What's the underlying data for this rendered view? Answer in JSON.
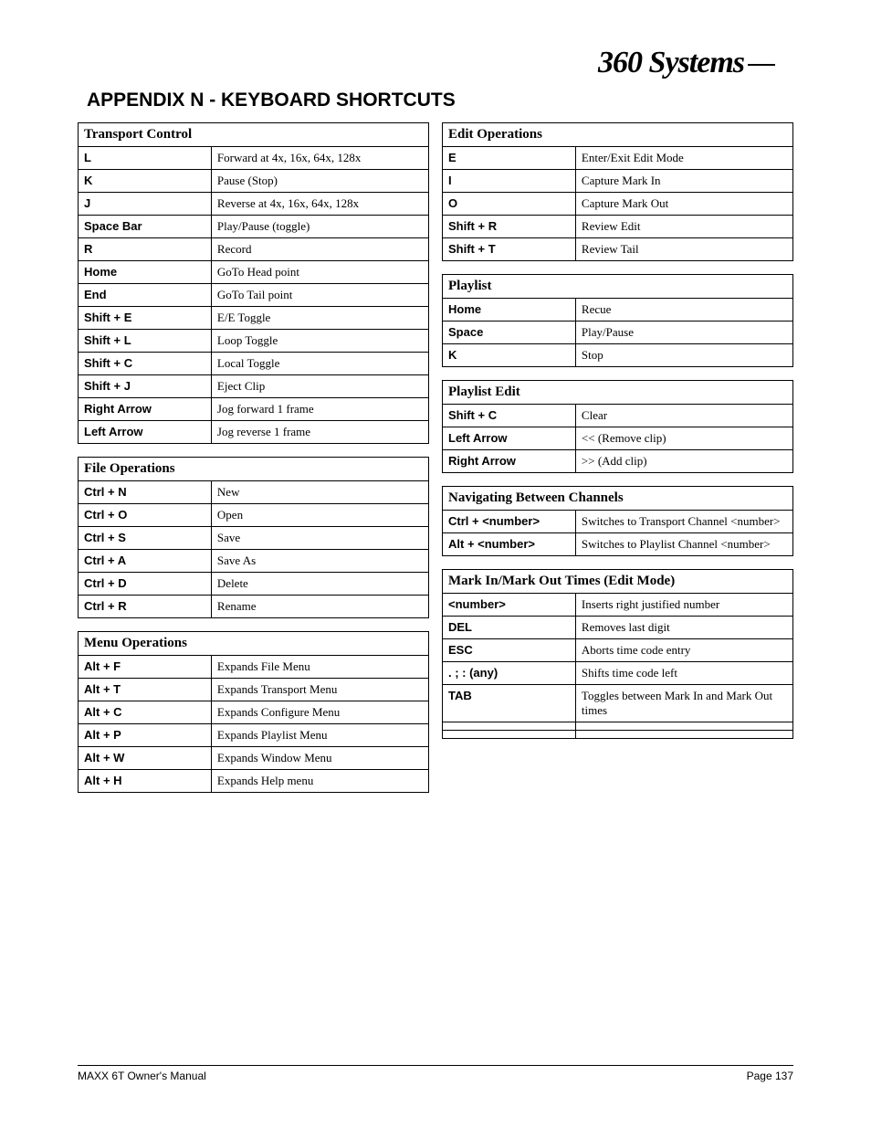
{
  "logo_text": "360 Systems",
  "appendix_title": "APPENDIX N - KEYBOARD SHORTCUTS",
  "left_tables": [
    {
      "title": "Transport Control",
      "rows": [
        {
          "key": "L",
          "desc": "Forward at 4x, 16x, 64x, 128x"
        },
        {
          "key": "K",
          "desc": "Pause (Stop)"
        },
        {
          "key": "J",
          "desc": "Reverse at 4x, 16x, 64x, 128x"
        },
        {
          "key": "Space Bar",
          "desc": "Play/Pause (toggle)"
        },
        {
          "key": "R",
          "desc": "Record"
        },
        {
          "key": "Home",
          "desc": "GoTo Head point"
        },
        {
          "key": "End",
          "desc": "GoTo Tail point"
        },
        {
          "key": "Shift + E",
          "desc": "E/E Toggle"
        },
        {
          "key": "Shift + L",
          "desc": "Loop Toggle"
        },
        {
          "key": "Shift + C",
          "desc": "Local Toggle"
        },
        {
          "key": "Shift + J",
          "desc": "Eject Clip"
        },
        {
          "key": "Right Arrow",
          "desc": "Jog forward 1 frame"
        },
        {
          "key": "Left Arrow",
          "desc": "Jog reverse 1 frame"
        }
      ]
    },
    {
      "title": "File Operations",
      "rows": [
        {
          "key": "Ctrl + N",
          "desc": "New"
        },
        {
          "key": "Ctrl + O",
          "desc": "Open"
        },
        {
          "key": "Ctrl + S",
          "desc": "Save"
        },
        {
          "key": "Ctrl + A",
          "desc": "Save As"
        },
        {
          "key": "Ctrl + D",
          "desc": "Delete"
        },
        {
          "key": "Ctrl + R",
          "desc": "Rename"
        }
      ]
    },
    {
      "title": "Menu Operations",
      "rows": [
        {
          "key": "Alt + F",
          "desc": "Expands File Menu"
        },
        {
          "key": "Alt + T",
          "desc": "Expands Transport Menu"
        },
        {
          "key": "Alt + C",
          "desc": "Expands Configure Menu"
        },
        {
          "key": "Alt + P",
          "desc": "Expands Playlist Menu"
        },
        {
          "key": "Alt + W",
          "desc": "Expands Window Menu"
        },
        {
          "key": "Alt + H",
          "desc": "Expands Help menu"
        }
      ]
    }
  ],
  "right_tables": [
    {
      "title": "Edit Operations",
      "rows": [
        {
          "key": "E",
          "desc": "Enter/Exit Edit Mode"
        },
        {
          "key": "I",
          "desc": "Capture Mark In"
        },
        {
          "key": "O",
          "desc": "Capture Mark Out"
        },
        {
          "key": "Shift + R",
          "desc": "Review Edit"
        },
        {
          "key": "Shift + T",
          "desc": "Review Tail"
        }
      ]
    },
    {
      "title": "Playlist",
      "rows": [
        {
          "key": "Home",
          "desc": "Recue"
        },
        {
          "key": "Space",
          "desc": "Play/Pause"
        },
        {
          "key": "K",
          "desc": "Stop"
        }
      ]
    },
    {
      "title": "Playlist Edit",
      "rows": [
        {
          "key": "Shift + C",
          "desc": "Clear"
        },
        {
          "key": "Left Arrow",
          "desc": "<< (Remove clip)"
        },
        {
          "key": "Right Arrow",
          "desc": ">> (Add clip)"
        }
      ]
    },
    {
      "title": "Navigating Between Channels",
      "rows": [
        {
          "key": "Ctrl + <number>",
          "desc": "Switches to Transport Channel <number>"
        },
        {
          "key": "Alt + <number>",
          "desc": "Switches to Playlist Channel <number>"
        }
      ]
    },
    {
      "title": "Mark In/Mark Out Times (Edit Mode)",
      "rows": [
        {
          "key": "<number>",
          "desc": "Inserts right justified number"
        },
        {
          "key": "DEL",
          "desc": "Removes last digit"
        },
        {
          "key": "ESC",
          "desc": "Aborts time code entry"
        },
        {
          "key": ". ; :  (any)",
          "desc": "Shifts time code left"
        },
        {
          "key": "TAB",
          "desc": "Toggles between Mark In and Mark Out times"
        },
        {
          "key": "",
          "desc": ""
        },
        {
          "key": "",
          "desc": ""
        }
      ]
    }
  ],
  "footer_left": "MAXX 6T Owner's Manual",
  "footer_right": "Page 137"
}
